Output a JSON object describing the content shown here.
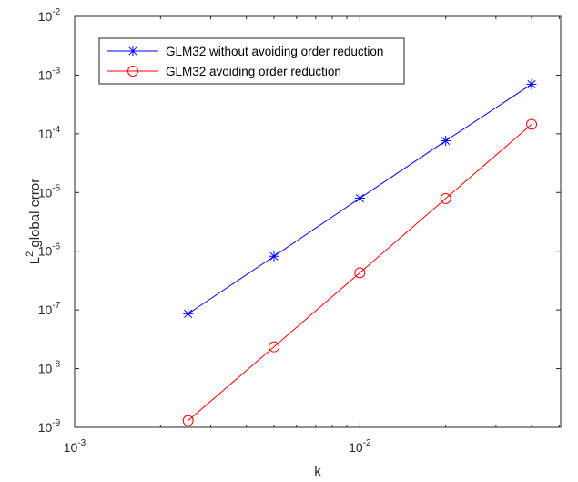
{
  "chart_data": {
    "type": "line",
    "xscale": "log",
    "yscale": "log",
    "xlim": [
      0.001,
      0.0506
    ],
    "ylim": [
      1e-09,
      0.01
    ],
    "xlabel": "k",
    "ylabel_main": "L",
    "ylabel_sup": "2",
    "ylabel_rest": " global error",
    "xticks": [
      {
        "value": 0.001,
        "base": "10",
        "exp": "-3"
      },
      {
        "value": 0.01,
        "base": "10",
        "exp": "-2"
      }
    ],
    "yticks": [
      {
        "value": 1e-09,
        "base": "10",
        "exp": "-9"
      },
      {
        "value": 1e-08,
        "base": "10",
        "exp": "-8"
      },
      {
        "value": 1e-07,
        "base": "10",
        "exp": "-7"
      },
      {
        "value": 1e-06,
        "base": "10",
        "exp": "-6"
      },
      {
        "value": 1e-05,
        "base": "10",
        "exp": "-5"
      },
      {
        "value": 0.0001,
        "base": "10",
        "exp": "-4"
      },
      {
        "value": 0.001,
        "base": "10",
        "exp": "-3"
      },
      {
        "value": 0.01,
        "base": "10",
        "exp": "-2"
      }
    ],
    "legend_position": "top-left",
    "grid": false,
    "series": [
      {
        "name": "GLM32 without avoiding order reduction",
        "color": "#0000ff",
        "marker": "asterisk",
        "x": [
          0.0025,
          0.005,
          0.01,
          0.02,
          0.04
        ],
        "y": [
          8.6e-08,
          8.2e-07,
          8e-06,
          7.6e-05,
          0.0007
        ]
      },
      {
        "name": "GLM32 avoiding order reduction",
        "color": "#ff0000",
        "marker": "circle",
        "x": [
          0.0025,
          0.005,
          0.01,
          0.02,
          0.04
        ],
        "y": [
          1.3e-09,
          2.35e-08,
          4.3e-07,
          7.9e-06,
          0.000145
        ]
      }
    ]
  }
}
